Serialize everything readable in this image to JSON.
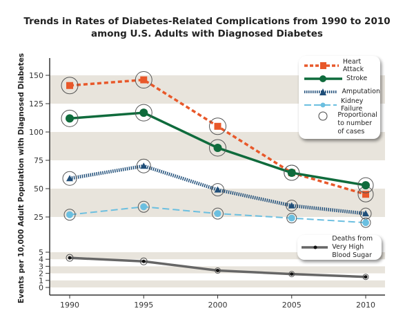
{
  "chart_data": {
    "type": "line",
    "title_line1": "Trends in Rates of Diabetes-Related Complications from 1990 to 2010",
    "title_line2": "among U.S. Adults with Diagnosed Diabetes",
    "ylabel": "Events per 10,000 Adult Population with Diagnosed Diabetes",
    "xlabel": "",
    "x": [
      1990,
      1995,
      2000,
      2005,
      2010
    ],
    "x_tick_labels": [
      "1990",
      "1995",
      "2000",
      "2005",
      "2010"
    ],
    "y_upper_ticks": [
      "150",
      "125",
      "100",
      "75",
      "50",
      "25"
    ],
    "y_lower_ticks": [
      "5",
      "4",
      "3",
      "2",
      "1",
      "0"
    ],
    "axis": "broken: upper 25-150, lower 0-5",
    "grid": "alternating horizontal bands",
    "series": [
      {
        "name": "Heart Attack",
        "color": "#e8582a",
        "style": "dashed",
        "marker": "square",
        "values": [
          141,
          146,
          105,
          64,
          45
        ]
      },
      {
        "name": "Stroke",
        "color": "#0f6b3c",
        "style": "solid",
        "marker": "circle",
        "values": [
          112,
          117,
          86,
          64,
          53
        ]
      },
      {
        "name": "Amputation",
        "color": "#1f4e79",
        "style": "dotted",
        "marker": "triangle",
        "values": [
          59,
          70,
          49,
          35,
          28
        ]
      },
      {
        "name": "Kidney Failure",
        "color": "#6bbfe0",
        "style": "long-dash",
        "marker": "circle",
        "values": [
          27,
          34,
          28,
          24,
          20
        ]
      },
      {
        "name": "Deaths from Very High Blood Sugar",
        "color": "#666666",
        "style": "solid",
        "marker": "dot",
        "values": [
          4.2,
          3.7,
          2.4,
          1.9,
          1.5
        ]
      }
    ],
    "circle_note": "Proportional to number of cases",
    "band_color": "#e8e4dc",
    "legend_placement": "top-right; second legend lower-right"
  }
}
